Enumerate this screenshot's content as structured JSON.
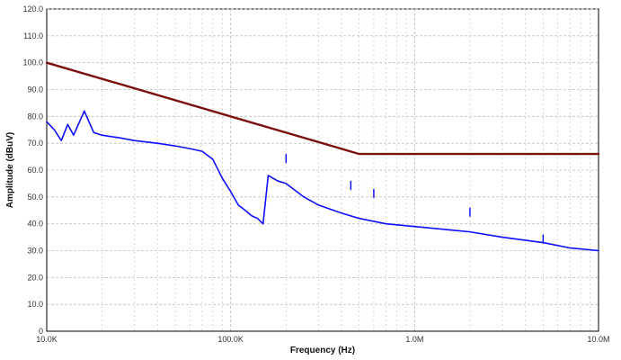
{
  "chart_data": {
    "type": "line",
    "title": "",
    "xlabel": "Frequency (Hz)",
    "ylabel": "Amplitude (dBuV)",
    "xscale": "log",
    "xlim": [
      10000,
      10000000
    ],
    "ylim": [
      0,
      120
    ],
    "grid": true,
    "x_tick_values": [
      10000,
      100000,
      1000000,
      10000000
    ],
    "x_tick_labels": [
      "10.0K",
      "100.0K",
      "1.0M",
      "10.0M"
    ],
    "y_tick_values": [
      0,
      10,
      20,
      30,
      40,
      50,
      60,
      70,
      80,
      90,
      100,
      110,
      120
    ],
    "y_tick_labels": [
      "0",
      "10.0",
      "20.0",
      "30.0",
      "40.0",
      "50.0",
      "60.0",
      "70.0",
      "80.0",
      "90.0",
      "100.0",
      "110.0",
      "120.0"
    ],
    "series": [
      {
        "color": "#7b1010",
        "x": [
          10000,
          500000,
          10000000
        ],
        "y": [
          100,
          66,
          66
        ]
      },
      {
        "color": "#0000ff",
        "x": [
          10000,
          11000,
          12000,
          13000,
          14000,
          16000,
          18000,
          20000,
          25000,
          30000,
          40000,
          50000,
          60000,
          70000,
          80000,
          90000,
          100000,
          110000,
          120000,
          130000,
          140000,
          150000,
          160000,
          180000,
          200000,
          250000,
          300000,
          400000,
          500000,
          700000,
          1000000,
          2000000,
          3000000,
          5000000,
          7000000,
          10000000
        ],
        "y": [
          78,
          75,
          71,
          77,
          73,
          82,
          74,
          73,
          72,
          71,
          70,
          69,
          68,
          67,
          64,
          57,
          52,
          47,
          45,
          43,
          42,
          40,
          58,
          56,
          55,
          50,
          47,
          44,
          42,
          40,
          39,
          37,
          35,
          33,
          31,
          30
        ]
      }
    ],
    "annotations": [
      {
        "x": 200000,
        "y": 66
      },
      {
        "x": 450000,
        "y": 56
      },
      {
        "x": 600000,
        "y": 53
      },
      {
        "x": 2000000,
        "y": 46
      },
      {
        "x": 5000000,
        "y": 36
      }
    ]
  }
}
